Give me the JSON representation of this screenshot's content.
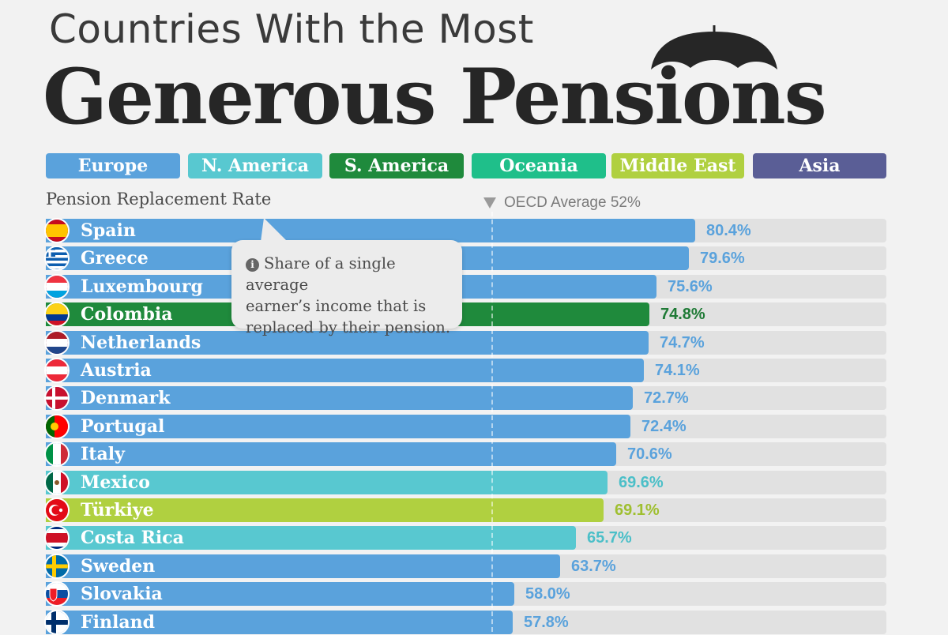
{
  "header": {
    "title_line1": "Countries With the Most",
    "title_line2": "Generous Pensions"
  },
  "legend": [
    {
      "label": "Europe",
      "color": "#5aa2dc"
    },
    {
      "label": "N. America",
      "color": "#58c8d0"
    },
    {
      "label": "S. America",
      "color": "#1f8a3c"
    },
    {
      "label": "Oceania",
      "color": "#1fbf8a"
    },
    {
      "label": "Middle East",
      "color": "#b0d040"
    },
    {
      "label": "Asia",
      "color": "#5a5e96"
    }
  ],
  "tooltip": {
    "icon": "info-icon",
    "line1": "Share of a single average",
    "line2": "earner’s income that is",
    "line3": "replaced by their pension."
  },
  "chart_data": {
    "type": "bar",
    "title": "Countries With the Most Generous Pensions",
    "ylabel": "Pension Replacement Rate",
    "reference_line": {
      "label": "OECD Average 52%",
      "value": 52
    },
    "xlim": [
      0,
      100
    ],
    "region_colors": {
      "Europe": "#5aa2dc",
      "N. America": "#58c8d0",
      "S. America": "#1f8a3c",
      "Middle East": "#b0d040"
    },
    "value_colors": {
      "Europe": "#5aa2dc",
      "N. America": "#4bbfc8",
      "S. America": "#1f7a36",
      "Middle East": "#9fbf30"
    },
    "categories": [
      "Spain",
      "Greece",
      "Luxembourg",
      "Colombia",
      "Netherlands",
      "Austria",
      "Denmark",
      "Portugal",
      "Italy",
      "Mexico",
      "Türkiye",
      "Costa Rica",
      "Sweden",
      "Slovakia",
      "Finland"
    ],
    "values": [
      80.4,
      79.6,
      75.6,
      74.8,
      74.7,
      74.1,
      72.7,
      72.4,
      70.6,
      69.6,
      69.1,
      65.7,
      63.7,
      58.0,
      57.8
    ],
    "value_labels": [
      "80.4%",
      "79.6%",
      "75.6%",
      "74.8%",
      "74.7%",
      "74.1%",
      "72.7%",
      "72.4%",
      "70.6%",
      "69.6%",
      "69.1%",
      "65.7%",
      "63.7%",
      "58.0%",
      "57.8%"
    ],
    "regions": [
      "Europe",
      "Europe",
      "Europe",
      "S. America",
      "Europe",
      "Europe",
      "Europe",
      "Europe",
      "Europe",
      "N. America",
      "Middle East",
      "N. America",
      "Europe",
      "Europe",
      "Europe"
    ],
    "flag_icons": [
      "spain-flag-icon",
      "greece-flag-icon",
      "luxembourg-flag-icon",
      "colombia-flag-icon",
      "netherlands-flag-icon",
      "austria-flag-icon",
      "denmark-flag-icon",
      "portugal-flag-icon",
      "italy-flag-icon",
      "mexico-flag-icon",
      "turkiye-flag-icon",
      "costa-rica-flag-icon",
      "sweden-flag-icon",
      "slovakia-flag-icon",
      "finland-flag-icon"
    ]
  }
}
